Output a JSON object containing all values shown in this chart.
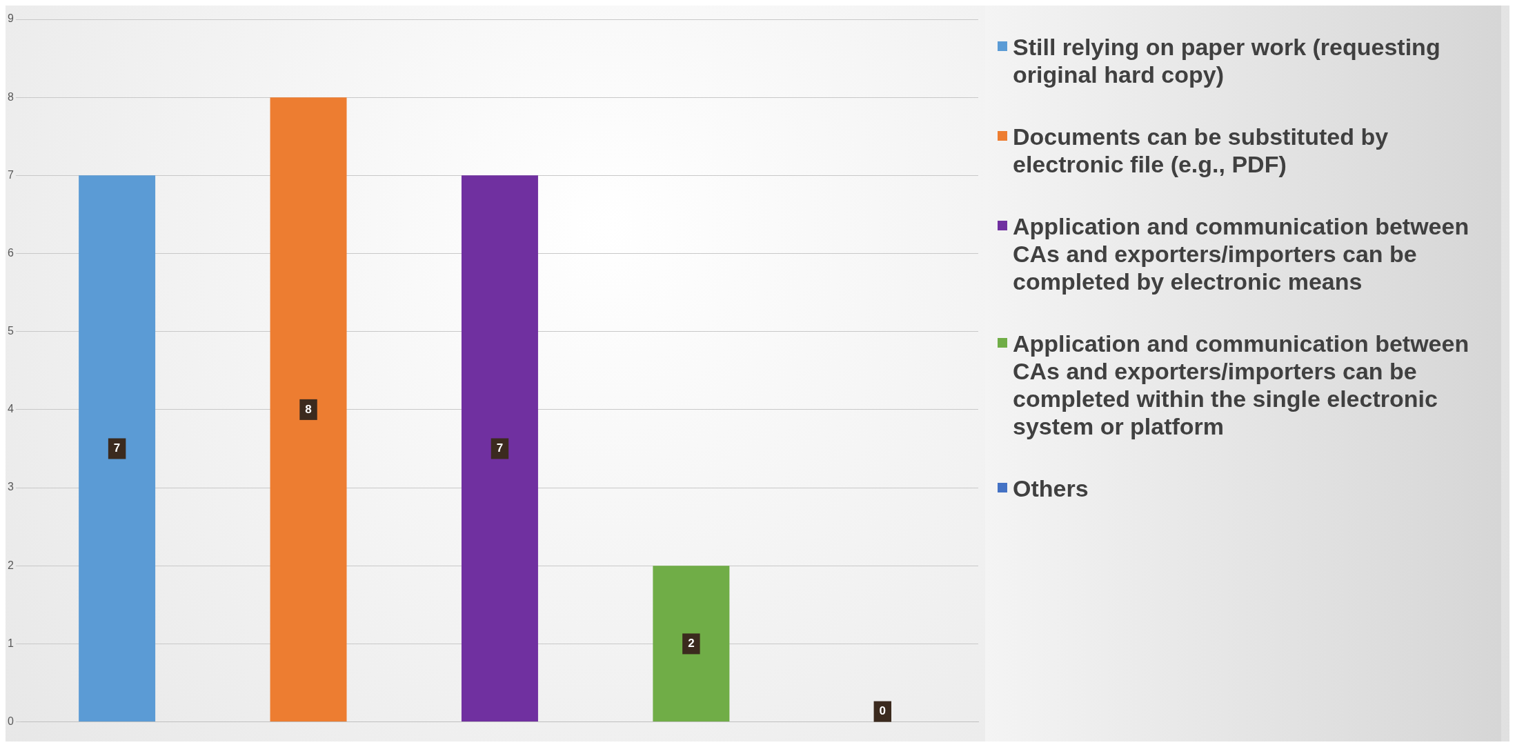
{
  "chart_data": {
    "type": "bar",
    "categories": [
      null,
      null,
      null,
      null,
      null
    ],
    "series": [
      {
        "name": "Still relying on paper work (requesting original hard copy)",
        "color": "#5b9bd5",
        "values": [
          7,
          null,
          null,
          null,
          null
        ]
      },
      {
        "name": "Documents can be substituted by electronic file (e.g., PDF)",
        "color": "#ed7d31",
        "values": [
          null,
          8,
          null,
          null,
          null
        ]
      },
      {
        "name": "Application and communication between CAs and exporters/importers can be completed by electronic means",
        "color": "#7030a0",
        "values": [
          null,
          null,
          7,
          null,
          null
        ]
      },
      {
        "name": "Application and communication between CAs and exporters/importers can be completed within the single electronic system or platform",
        "color": "#70ad47",
        "values": [
          null,
          null,
          null,
          2,
          null
        ]
      },
      {
        "name": "Others",
        "color": "#4472c4",
        "values": [
          null,
          null,
          null,
          null,
          0
        ]
      }
    ],
    "ylim": [
      0,
      9
    ],
    "yticks": [
      0,
      1,
      2,
      3,
      4,
      5,
      6,
      7,
      8,
      9
    ],
    "grid": "y",
    "legend": "right",
    "data_labels": true
  }
}
